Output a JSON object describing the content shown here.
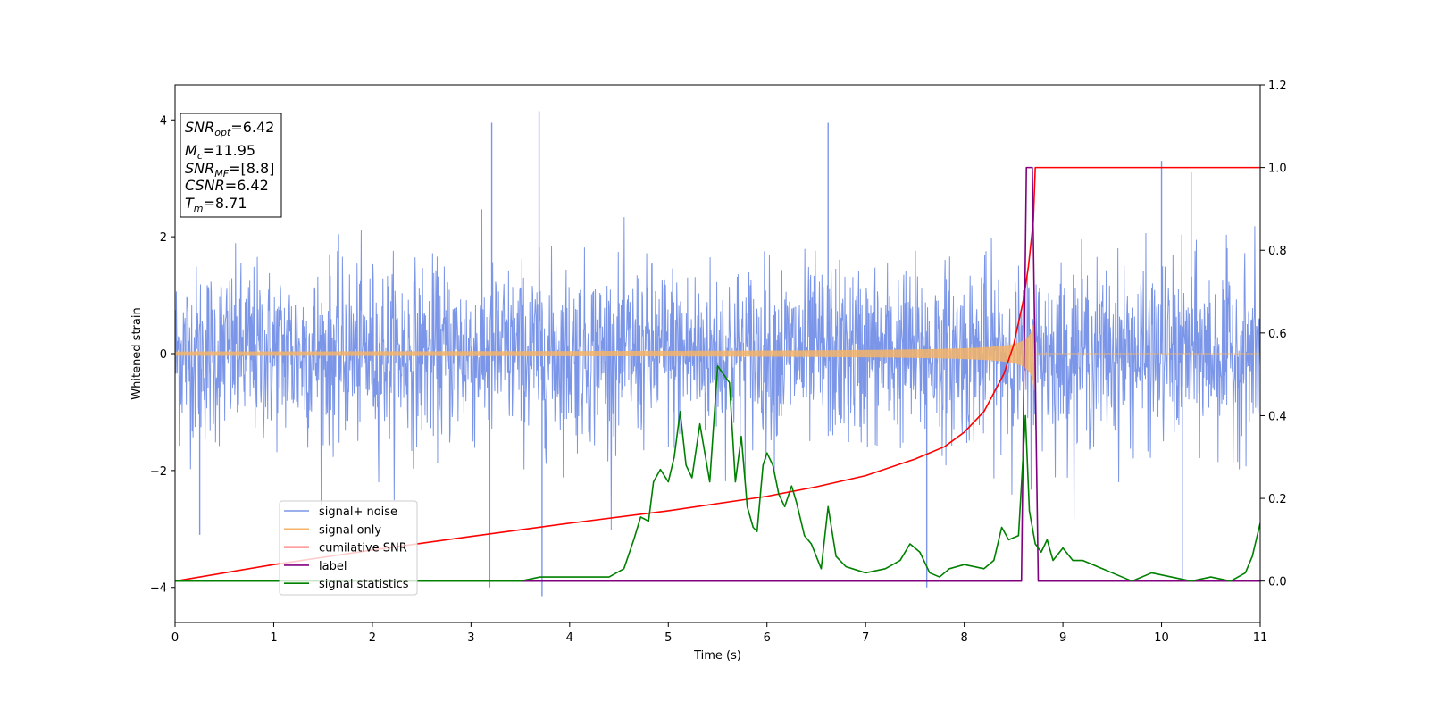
{
  "chart_data": {
    "type": "line",
    "xlabel": "Time (s)",
    "ylabel": "Whitened strain",
    "xlim": [
      0,
      11
    ],
    "ylim_left": [
      -4.6,
      4.6
    ],
    "ylim_right": [
      -0.1,
      1.2
    ],
    "x_ticks": [
      "0",
      "1",
      "2",
      "3",
      "4",
      "5",
      "6",
      "7",
      "8",
      "9",
      "10",
      "11"
    ],
    "y_ticks_left": [
      "−4",
      "−2",
      "0",
      "2",
      "4"
    ],
    "y_ticks_right": [
      "0.0",
      "0.2",
      "0.4",
      "0.6",
      "0.8",
      "1.0",
      "1.2"
    ],
    "annotation": {
      "lines": [
        {
          "symbol": "SNR",
          "sub": "opt",
          "value": "=6.42"
        },
        {
          "symbol": "M",
          "sub": "c",
          "value": "=11.95"
        },
        {
          "symbol": "SNR",
          "sub": "MF",
          "value": "=[8.8]"
        },
        {
          "symbol": "CSNR",
          "sub": "",
          "value": "=6.42"
        },
        {
          "symbol": "T",
          "sub": "m",
          "value": "=8.71"
        }
      ]
    },
    "legend": {
      "placement": "lower-left",
      "entries": [
        "signal+ noise",
        "signal only",
        "cumilative SNR",
        "label",
        "signal statistics"
      ]
    },
    "series": [
      {
        "name": "signal+ noise",
        "axis": "left",
        "color": "#7b96e8",
        "kind": "noise",
        "typical_amplitude": 2.2,
        "peaks": [
          [
            3.21,
            3.95
          ],
          [
            3.69,
            4.15
          ],
          [
            3.72,
            -4.15
          ],
          [
            6.62,
            3.95
          ],
          [
            10.0,
            3.3
          ],
          [
            10.21,
            -3.9
          ],
          [
            3.19,
            -4.0
          ],
          [
            7.62,
            -4.0
          ],
          [
            0.25,
            -3.1
          ],
          [
            10.3,
            3.1
          ]
        ]
      },
      {
        "name": "signal only",
        "axis": "left",
        "color": "#f5b469",
        "kind": "chirp",
        "merger_time": 8.71,
        "peak_amplitude": 0.65,
        "base_amplitude": 0.02
      },
      {
        "name": "cumilative SNR",
        "axis": "right",
        "color": "#ff0000",
        "x": [
          0,
          1,
          2,
          3,
          4,
          5,
          6,
          6.5,
          7,
          7.5,
          7.8,
          8.0,
          8.2,
          8.4,
          8.5,
          8.6,
          8.65,
          8.7,
          8.72,
          11
        ],
        "y": [
          0.0,
          0.04,
          0.075,
          0.108,
          0.14,
          0.17,
          0.205,
          0.228,
          0.255,
          0.295,
          0.325,
          0.36,
          0.41,
          0.5,
          0.57,
          0.68,
          0.76,
          0.87,
          1.0,
          1.0
        ]
      },
      {
        "name": "label",
        "axis": "right",
        "color": "#800080",
        "x": [
          0,
          8.58,
          8.63,
          8.69,
          8.75,
          11
        ],
        "y": [
          0.0,
          0.0,
          1.0,
          1.0,
          0.0,
          0.0
        ]
      },
      {
        "name": "signal statistics",
        "axis": "right",
        "color": "#008000",
        "x": [
          0,
          1,
          2,
          3,
          3.5,
          3.7,
          4.0,
          4.4,
          4.55,
          4.65,
          4.72,
          4.8,
          4.85,
          4.92,
          5.0,
          5.06,
          5.12,
          5.18,
          5.24,
          5.32,
          5.42,
          5.5,
          5.56,
          5.62,
          5.68,
          5.74,
          5.8,
          5.86,
          5.9,
          5.96,
          6.0,
          6.06,
          6.12,
          6.18,
          6.25,
          6.3,
          6.38,
          6.45,
          6.55,
          6.62,
          6.7,
          6.8,
          7.0,
          7.2,
          7.35,
          7.45,
          7.55,
          7.65,
          7.75,
          7.85,
          8.0,
          8.2,
          8.3,
          8.38,
          8.45,
          8.55,
          8.62,
          8.66,
          8.72,
          8.78,
          8.84,
          8.9,
          9.0,
          9.1,
          9.2,
          9.3,
          9.4,
          9.5,
          9.7,
          9.9,
          10.1,
          10.3,
          10.5,
          10.7,
          10.85,
          10.92,
          11.0
        ],
        "y": [
          0.0,
          0.0,
          0.0,
          0.0,
          0.0,
          0.01,
          0.01,
          0.01,
          0.03,
          0.1,
          0.155,
          0.145,
          0.24,
          0.27,
          0.24,
          0.3,
          0.41,
          0.28,
          0.25,
          0.38,
          0.24,
          0.52,
          0.5,
          0.48,
          0.24,
          0.35,
          0.18,
          0.13,
          0.12,
          0.28,
          0.31,
          0.28,
          0.21,
          0.18,
          0.23,
          0.19,
          0.11,
          0.09,
          0.03,
          0.18,
          0.06,
          0.035,
          0.02,
          0.03,
          0.05,
          0.09,
          0.07,
          0.02,
          0.01,
          0.03,
          0.04,
          0.03,
          0.05,
          0.13,
          0.1,
          0.11,
          0.4,
          0.17,
          0.09,
          0.07,
          0.1,
          0.05,
          0.08,
          0.05,
          0.05,
          0.04,
          0.03,
          0.02,
          0.0,
          0.02,
          0.01,
          0.0,
          0.01,
          0.0,
          0.02,
          0.06,
          0.14
        ]
      }
    ]
  }
}
